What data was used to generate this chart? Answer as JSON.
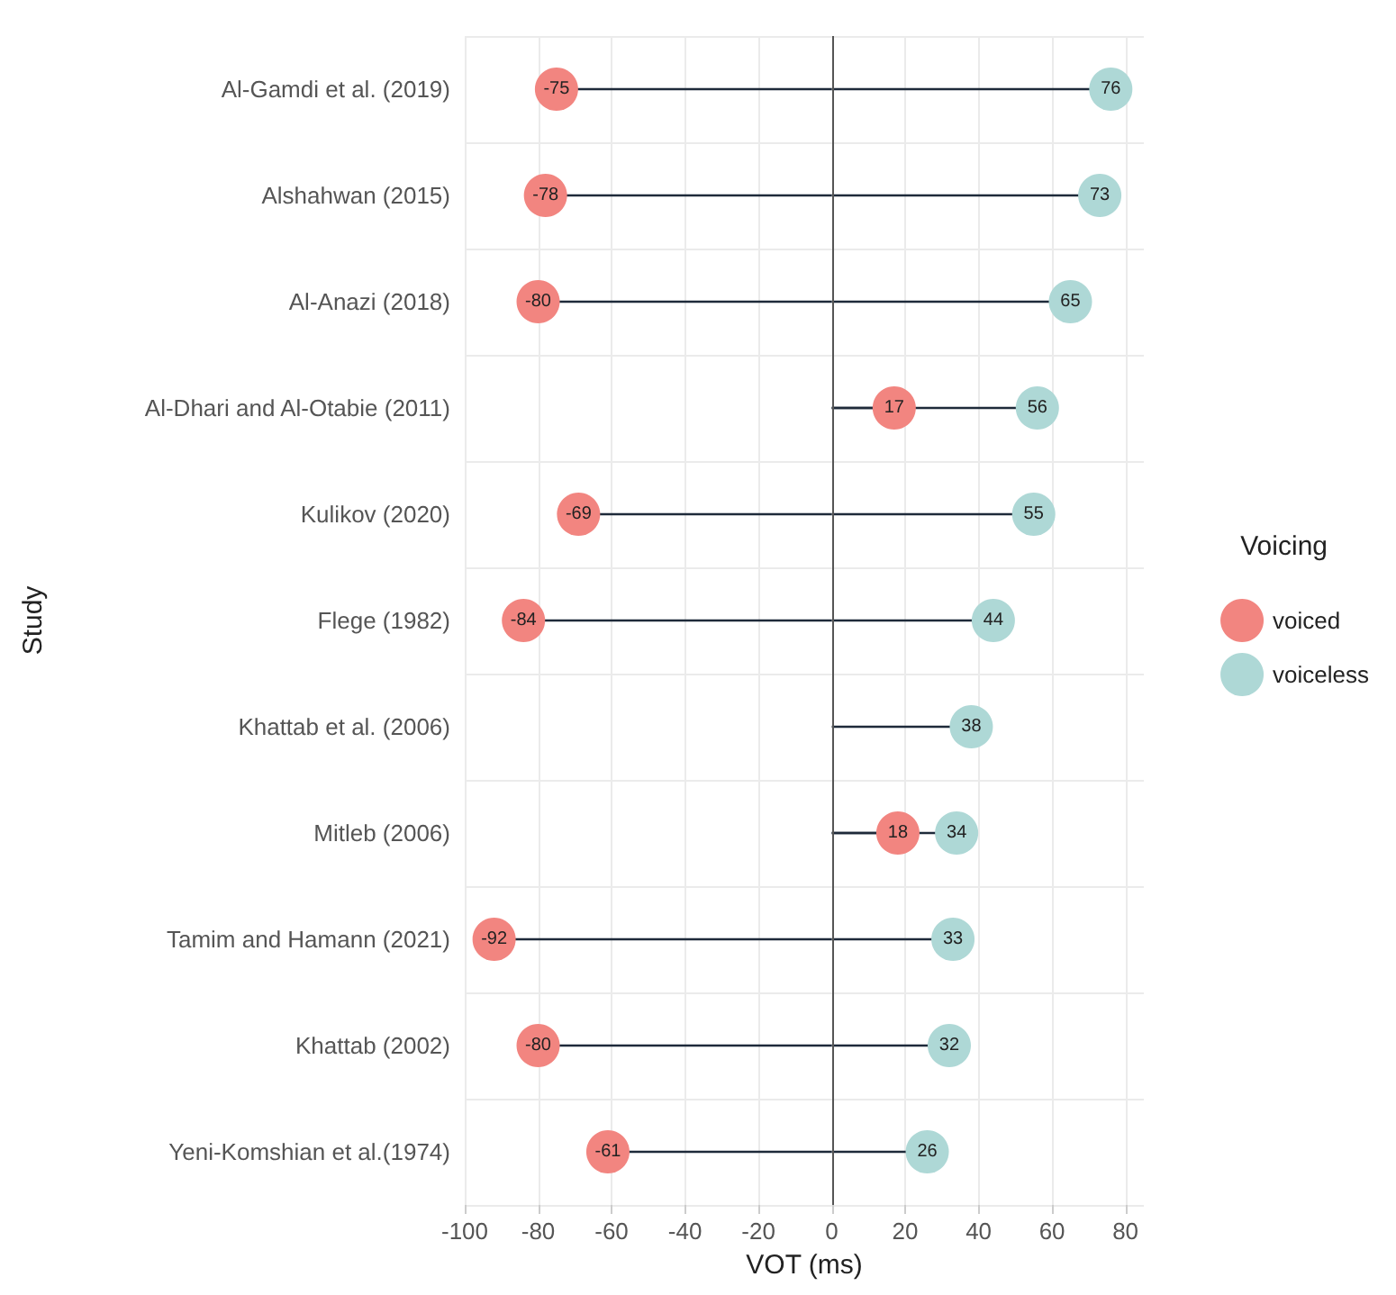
{
  "chart_data": {
    "type": "lollipop",
    "orientation": "horizontal",
    "xlabel": "VOT (ms)",
    "ylabel": "Study",
    "legend_title": "Voicing",
    "categories": [
      "Al-Gamdi et al. (2019)",
      "Alshahwan (2015)",
      "Al-Anazi (2018)",
      "Al-Dhari and Al-Otabie (2011)",
      "Kulikov (2020)",
      "Flege (1982)",
      "Khattab et al. (2006)",
      "Mitleb (2006)",
      "Tamim and Hamann (2021)",
      "Khattab (2002)",
      "Yeni-Komshian et al.(1974)"
    ],
    "series": [
      {
        "name": "voiced",
        "color": "#f28580",
        "values": [
          -75,
          -78,
          -80,
          17,
          -69,
          -84,
          null,
          18,
          -92,
          -80,
          -61
        ]
      },
      {
        "name": "voiceless",
        "color": "#aed8d6",
        "values": [
          76,
          73,
          65,
          56,
          55,
          44,
          38,
          34,
          33,
          32,
          26
        ]
      }
    ],
    "xlim": [
      -100,
      85
    ],
    "xticks": [
      -100,
      -80,
      -60,
      -40,
      -20,
      0,
      20,
      40,
      60,
      80
    ],
    "ref_lines": [
      {
        "axis": "x",
        "value": 0,
        "color": "#555555"
      }
    ],
    "data_labels": true,
    "grid": true,
    "legend": "right",
    "marker": "circle"
  }
}
